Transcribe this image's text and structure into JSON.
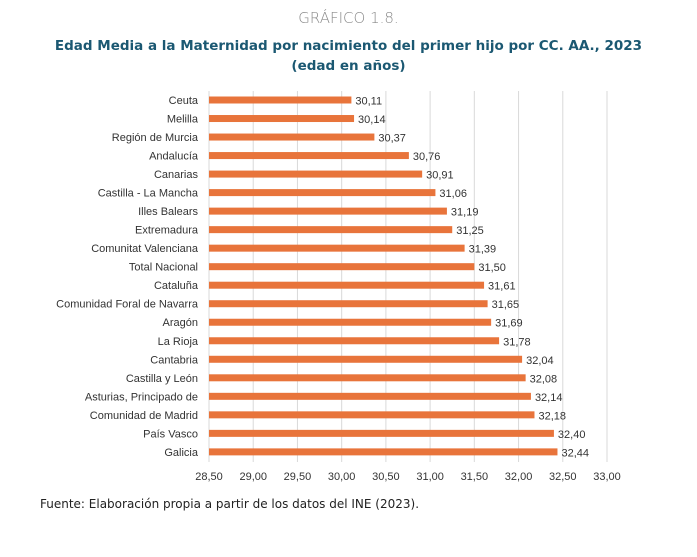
{
  "chart_data": {
    "type": "bar",
    "orientation": "horizontal",
    "supertitle": "GRÁFICO 1.8.",
    "title": "Edad Media a la Maternidad por nacimiento del primer hijo por CC. AA., 2023",
    "subtitle": "(edad en años)",
    "categories": [
      "Ceuta",
      "Melilla",
      "Región de Murcia",
      "Andalucía",
      "Canarias",
      "Castilla - La Mancha",
      "Illes Balears",
      "Extremadura",
      "Comunitat Valenciana",
      "Total Nacional",
      "Cataluña",
      "Comunidad Foral de Navarra",
      "Aragón",
      "La Rioja",
      "Cantabria",
      "Castilla y León",
      "Asturias, Principado de",
      "Comunidad de Madrid",
      "País Vasco",
      "Galicia"
    ],
    "values": [
      30.11,
      30.14,
      30.37,
      30.76,
      30.91,
      31.06,
      31.19,
      31.25,
      31.39,
      31.5,
      31.61,
      31.65,
      31.69,
      31.78,
      32.04,
      32.08,
      32.14,
      32.18,
      32.4,
      32.44
    ],
    "data_labels": [
      "30,11",
      "30,14",
      "30,37",
      "30,76",
      "30,91",
      "31,06",
      "31,19",
      "31,25",
      "31,39",
      "31,50",
      "31,61",
      "31,65",
      "31,69",
      "31,78",
      "32,04",
      "32,08",
      "32,14",
      "32,18",
      "32,40",
      "32,44"
    ],
    "xlim": [
      28.5,
      33.0
    ],
    "xticks": [
      "28,50",
      "29,00",
      "29,50",
      "30,00",
      "30,50",
      "31,00",
      "31,50",
      "32,00",
      "32,50",
      "33,00"
    ],
    "grid": true,
    "bar_color": "#e8743b",
    "source": "Fuente: Elaboración propia a partir de los datos del INE (2023)."
  }
}
